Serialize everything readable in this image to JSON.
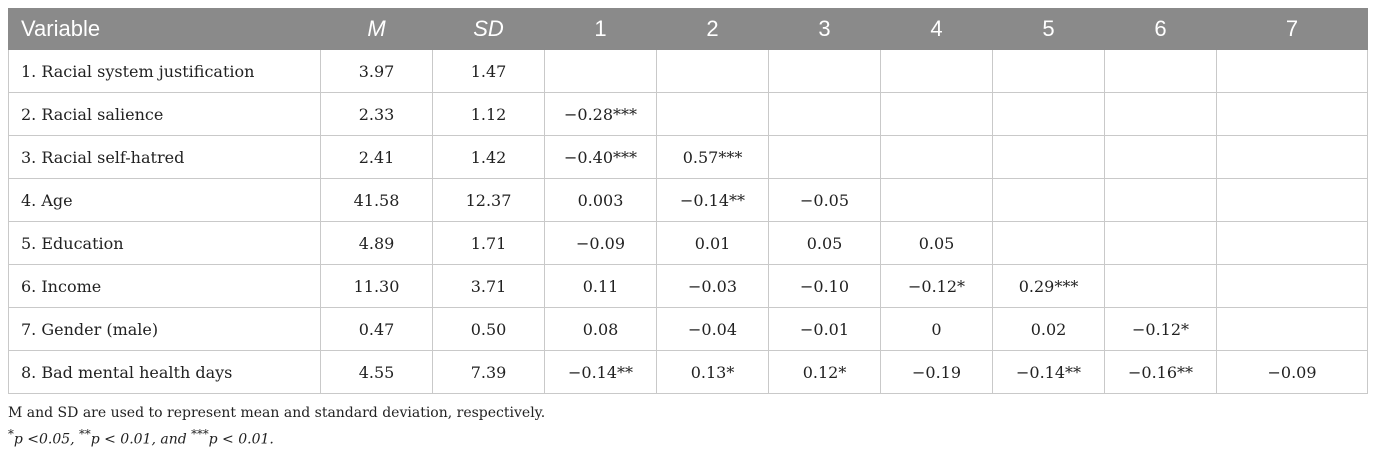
{
  "table": {
    "headers": [
      {
        "label": "Variable",
        "italic": false
      },
      {
        "label": "M",
        "italic": true
      },
      {
        "label": "SD",
        "italic": true
      },
      {
        "label": "1",
        "italic": false
      },
      {
        "label": "2",
        "italic": false
      },
      {
        "label": "3",
        "italic": false
      },
      {
        "label": "4",
        "italic": false
      },
      {
        "label": "5",
        "italic": false
      },
      {
        "label": "6",
        "italic": false
      },
      {
        "label": "7",
        "italic": false
      }
    ],
    "rows": [
      {
        "variable": "1. Racial system justification",
        "m": "3.97",
        "sd": "1.47",
        "r": [
          "",
          "",
          "",
          "",
          "",
          "",
          ""
        ]
      },
      {
        "variable": "2. Racial salience",
        "m": "2.33",
        "sd": "1.12",
        "r": [
          "−0.28***",
          "",
          "",
          "",
          "",
          "",
          ""
        ]
      },
      {
        "variable": "3. Racial self-hatred",
        "m": "2.41",
        "sd": "1.42",
        "r": [
          "−0.40***",
          "0.57***",
          "",
          "",
          "",
          "",
          ""
        ]
      },
      {
        "variable": "4. Age",
        "m": "41.58",
        "sd": "12.37",
        "r": [
          "0.003",
          "−0.14**",
          "−0.05",
          "",
          "",
          "",
          ""
        ]
      },
      {
        "variable": "5. Education",
        "m": "4.89",
        "sd": "1.71",
        "r": [
          "−0.09",
          "0.01",
          "0.05",
          "0.05",
          "",
          "",
          ""
        ]
      },
      {
        "variable": "6. Income",
        "m": "11.30",
        "sd": "3.71",
        "r": [
          "0.11",
          "−0.03",
          "−0.10",
          "−0.12*",
          "0.29***",
          "",
          ""
        ]
      },
      {
        "variable": "7. Gender (male)",
        "m": "0.47",
        "sd": "0.50",
        "r": [
          "0.08",
          "−0.04",
          "−0.01",
          "0",
          "0.02",
          "−0.12*",
          ""
        ]
      },
      {
        "variable": "8. Bad mental health days",
        "m": "4.55",
        "sd": "7.39",
        "r": [
          "−0.14**",
          "0.13*",
          "0.12*",
          "−0.19",
          "−0.14**",
          "−0.16**",
          "−0.09"
        ]
      }
    ]
  },
  "notes": {
    "line1": "M and SD are used to represent mean and standard deviation, respectively.",
    "line2": {
      "p1_marker": "*",
      "p1_text": "p <0.05, ",
      "p2_marker": "**",
      "p2_text": "p < 0.01, and ",
      "p3_marker": "***",
      "p3_text": "p < 0.01."
    }
  }
}
